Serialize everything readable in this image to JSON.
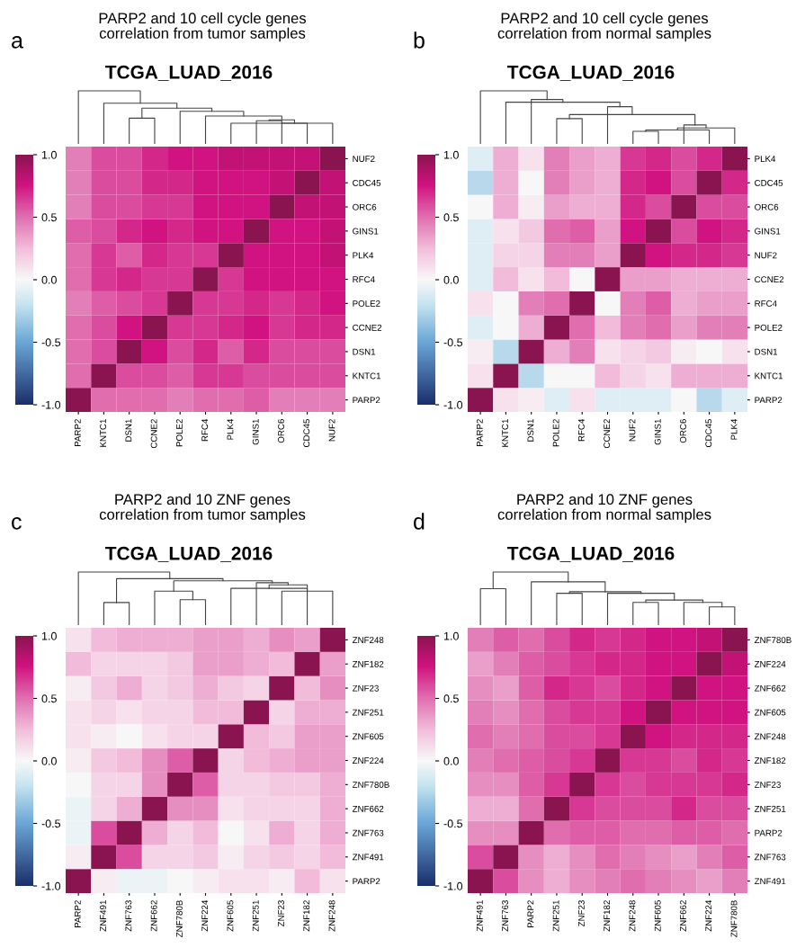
{
  "chart_data": [
    {
      "type": "heatmap",
      "title": "PARP2 and 10 cell cycle genes\ncorrelation from tumor samples",
      "subtitle": "TCGA_LUAD_2016",
      "annotations": [
        "a"
      ],
      "categories": [
        "PARP2",
        "KNTC1",
        "DSN1",
        "CCNE2",
        "POLE2",
        "RFC4",
        "PLK4",
        "GINS1",
        "ORC6",
        "CDC45",
        "NUF2"
      ],
      "y_categories": [
        "NUF2",
        "CDC45",
        "ORC6",
        "GINS1",
        "PLK4",
        "RFC4",
        "POLE2",
        "CCNE2",
        "DSN1",
        "KNTC1",
        "PARP2"
      ],
      "clim": [
        -1,
        1
      ],
      "cticks": [
        {
          "value": -1,
          "label": "-1.0"
        },
        {
          "value": -0.5,
          "label": "-0.5"
        },
        {
          "value": 0,
          "label": "0.0"
        },
        {
          "value": 0.5,
          "label": "0.5"
        },
        {
          "value": 1,
          "label": "1.0"
        }
      ],
      "cells": [
        [
          0.45,
          0.6,
          0.6,
          0.7,
          0.75,
          0.75,
          0.8,
          0.8,
          0.8,
          0.8,
          1
        ],
        [
          0.45,
          0.6,
          0.6,
          0.7,
          0.7,
          0.75,
          0.75,
          0.75,
          0.8,
          1,
          0.8
        ],
        [
          0.45,
          0.6,
          0.6,
          0.65,
          0.65,
          0.75,
          0.75,
          0.75,
          1,
          0.8,
          0.8
        ],
        [
          0.55,
          0.6,
          0.7,
          0.75,
          0.7,
          0.75,
          0.75,
          1,
          0.75,
          0.75,
          0.8
        ],
        [
          0.5,
          0.65,
          0.55,
          0.7,
          0.65,
          0.65,
          1,
          0.75,
          0.75,
          0.75,
          0.8
        ],
        [
          0.5,
          0.65,
          0.7,
          0.65,
          0.65,
          1,
          0.65,
          0.75,
          0.75,
          0.75,
          0.75
        ],
        [
          0.45,
          0.55,
          0.6,
          0.65,
          1,
          0.65,
          0.65,
          0.7,
          0.65,
          0.7,
          0.75
        ],
        [
          0.5,
          0.6,
          0.75,
          1,
          0.65,
          0.65,
          0.7,
          0.75,
          0.65,
          0.7,
          0.7
        ],
        [
          0.5,
          0.6,
          1,
          0.75,
          0.6,
          0.7,
          0.55,
          0.7,
          0.6,
          0.6,
          0.6
        ],
        [
          0.5,
          1,
          0.6,
          0.6,
          0.55,
          0.65,
          0.65,
          0.6,
          0.6,
          0.6,
          0.6
        ],
        [
          1,
          0.5,
          0.5,
          0.5,
          0.45,
          0.5,
          0.5,
          0.55,
          0.45,
          0.45,
          0.45
        ]
      ]
    },
    {
      "type": "heatmap",
      "title": "PARP2 and 10 cell cycle genes\ncorrelation from normal samples",
      "subtitle": "TCGA_LUAD_2016",
      "annotations": [
        "b"
      ],
      "categories": [
        "PARP2",
        "KNTC1",
        "DSN1",
        "POLE2",
        "RFC4",
        "CCNE2",
        "NUF2",
        "GINS1",
        "ORC6",
        "CDC45",
        "PLK4"
      ],
      "y_categories": [
        "PLK4",
        "CDC45",
        "ORC6",
        "GINS1",
        "NUF2",
        "CCNE2",
        "RFC4",
        "POLE2",
        "DSN1",
        "KNTC1",
        "PARP2"
      ],
      "clim": [
        -1,
        1
      ],
      "cticks": [
        {
          "value": -1,
          "label": "-1.0"
        },
        {
          "value": -0.5,
          "label": "-0.5"
        },
        {
          "value": 0,
          "label": "0.0"
        },
        {
          "value": 0.5,
          "label": "0.5"
        },
        {
          "value": 1,
          "label": "1.0"
        }
      ],
      "cells": [
        [
          -0.1,
          0.3,
          0.1,
          0.45,
          0.35,
          0.3,
          0.65,
          0.7,
          0.6,
          0.7,
          1
        ],
        [
          -0.25,
          0.3,
          0.0,
          0.45,
          0.35,
          0.3,
          0.7,
          0.75,
          0.6,
          1,
          0.7
        ],
        [
          0.0,
          0.3,
          0.05,
          0.35,
          0.3,
          0.3,
          0.7,
          0.6,
          1,
          0.6,
          0.6
        ],
        [
          -0.1,
          0.1,
          0.2,
          0.5,
          0.55,
          0.35,
          0.75,
          1,
          0.6,
          0.75,
          0.7
        ],
        [
          -0.1,
          0.15,
          0.15,
          0.45,
          0.45,
          0.35,
          1,
          0.75,
          0.7,
          0.7,
          0.65
        ],
        [
          -0.1,
          0.25,
          0.1,
          0.25,
          0.0,
          1,
          0.35,
          0.35,
          0.3,
          0.3,
          0.3
        ],
        [
          0.1,
          0.0,
          0.45,
          0.5,
          1,
          0.0,
          0.45,
          0.55,
          0.3,
          0.35,
          0.35
        ],
        [
          -0.1,
          0.0,
          0.3,
          1,
          0.5,
          0.25,
          0.45,
          0.5,
          0.35,
          0.45,
          0.45
        ],
        [
          0.05,
          -0.25,
          1,
          0.3,
          0.45,
          0.1,
          0.15,
          0.2,
          0.05,
          0.0,
          0.1
        ],
        [
          0.1,
          1,
          -0.25,
          0.0,
          0.0,
          0.25,
          0.15,
          0.1,
          0.3,
          0.3,
          0.3
        ],
        [
          1,
          0.1,
          0.05,
          -0.1,
          0.1,
          -0.1,
          -0.1,
          -0.1,
          0.0,
          -0.25,
          -0.1
        ]
      ]
    },
    {
      "type": "heatmap",
      "title": "PARP2 and 10 ZNF genes\ncorrelation from tumor samples",
      "subtitle": "TCGA_LUAD_2016",
      "annotations": [
        "c"
      ],
      "categories": [
        "PARP2",
        "ZNF491",
        "ZNF763",
        "ZNF662",
        "ZNF780B",
        "ZNF224",
        "ZNF605",
        "ZNF251",
        "ZNF23",
        "ZNF182",
        "ZNF248"
      ],
      "y_categories": [
        "ZNF248",
        "ZNF182",
        "ZNF23",
        "ZNF251",
        "ZNF605",
        "ZNF224",
        "ZNF780B",
        "ZNF662",
        "ZNF763",
        "ZNF491",
        "PARP2"
      ],
      "clim": [
        -1,
        1
      ],
      "cticks": [
        {
          "value": -1,
          "label": "-1.0"
        },
        {
          "value": -0.5,
          "label": "-0.5"
        },
        {
          "value": 0,
          "label": "0.0"
        },
        {
          "value": 0.5,
          "label": "0.5"
        },
        {
          "value": 1,
          "label": "1.0"
        }
      ],
      "cells": [
        [
          0.1,
          0.25,
          0.3,
          0.3,
          0.3,
          0.35,
          0.35,
          0.3,
          0.4,
          0.35,
          1
        ],
        [
          0.25,
          0.15,
          0.15,
          0.15,
          0.2,
          0.35,
          0.35,
          0.3,
          0.25,
          1,
          0.35
        ],
        [
          0.05,
          0.2,
          0.3,
          0.15,
          0.2,
          0.3,
          0.2,
          0.15,
          1,
          0.25,
          0.4
        ],
        [
          0.1,
          0.15,
          0.1,
          0.15,
          0.15,
          0.25,
          0.25,
          1,
          0.15,
          0.3,
          0.3
        ],
        [
          0.1,
          0.05,
          0.0,
          0.1,
          0.15,
          0.15,
          1,
          0.25,
          0.2,
          0.35,
          0.35
        ],
        [
          0.05,
          0.2,
          0.25,
          0.4,
          0.55,
          1,
          0.15,
          0.25,
          0.3,
          0.35,
          0.35
        ],
        [
          0.0,
          0.15,
          0.15,
          0.4,
          1,
          0.55,
          0.15,
          0.15,
          0.2,
          0.2,
          0.3
        ],
        [
          -0.05,
          0.15,
          0.3,
          1,
          0.4,
          0.4,
          0.1,
          0.15,
          0.15,
          0.15,
          0.3
        ],
        [
          -0.05,
          0.6,
          1,
          0.3,
          0.15,
          0.25,
          0.0,
          0.1,
          0.3,
          0.15,
          0.3
        ],
        [
          0.05,
          1,
          0.6,
          0.15,
          0.15,
          0.2,
          0.05,
          0.15,
          0.2,
          0.15,
          0.25
        ],
        [
          1,
          0.05,
          -0.05,
          -0.05,
          0.0,
          0.05,
          0.1,
          0.1,
          0.05,
          0.25,
          0.1
        ]
      ]
    },
    {
      "type": "heatmap",
      "title": "PARP2 and 10 ZNF genes\ncorrelation from normal samples",
      "subtitle": "TCGA_LUAD_2016",
      "annotations": [
        "d"
      ],
      "categories": [
        "ZNF491",
        "ZNF763",
        "PARP2",
        "ZNF251",
        "ZNF23",
        "ZNF182",
        "ZNF248",
        "ZNF605",
        "ZNF662",
        "ZNF224",
        "ZNF780B"
      ],
      "y_categories": [
        "ZNF780B",
        "ZNF224",
        "ZNF662",
        "ZNF605",
        "ZNF248",
        "ZNF182",
        "ZNF23",
        "ZNF251",
        "PARP2",
        "ZNF763",
        "ZNF491"
      ],
      "clim": [
        -1,
        1
      ],
      "cticks": [
        {
          "value": -1,
          "label": "-1.0"
        },
        {
          "value": -0.5,
          "label": "-0.5"
        },
        {
          "value": 0,
          "label": "0.0"
        },
        {
          "value": 0.5,
          "label": "0.5"
        },
        {
          "value": 1,
          "label": "1.0"
        }
      ],
      "cells": [
        [
          0.45,
          0.55,
          0.5,
          0.6,
          0.7,
          0.65,
          0.7,
          0.75,
          0.75,
          0.8,
          1
        ],
        [
          0.35,
          0.45,
          0.55,
          0.6,
          0.65,
          0.7,
          0.7,
          0.75,
          0.75,
          1,
          0.8
        ],
        [
          0.4,
          0.35,
          0.55,
          0.7,
          0.65,
          0.6,
          0.7,
          0.75,
          1,
          0.75,
          0.75
        ],
        [
          0.45,
          0.4,
          0.5,
          0.6,
          0.65,
          0.65,
          0.75,
          1,
          0.75,
          0.75,
          0.75
        ],
        [
          0.5,
          0.45,
          0.5,
          0.6,
          0.6,
          0.65,
          1,
          0.75,
          0.7,
          0.7,
          0.7
        ],
        [
          0.45,
          0.5,
          0.55,
          0.6,
          0.65,
          1,
          0.65,
          0.65,
          0.6,
          0.7,
          0.65
        ],
        [
          0.4,
          0.4,
          0.55,
          0.65,
          1,
          0.65,
          0.6,
          0.65,
          0.65,
          0.65,
          0.7
        ],
        [
          0.3,
          0.3,
          0.5,
          1,
          0.65,
          0.6,
          0.6,
          0.6,
          0.7,
          0.6,
          0.6
        ],
        [
          0.4,
          0.4,
          1,
          0.5,
          0.55,
          0.55,
          0.5,
          0.5,
          0.55,
          0.55,
          0.5
        ],
        [
          0.6,
          1,
          0.4,
          0.3,
          0.4,
          0.5,
          0.45,
          0.4,
          0.35,
          0.45,
          0.55
        ],
        [
          1,
          0.6,
          0.4,
          0.3,
          0.4,
          0.45,
          0.5,
          0.45,
          0.4,
          0.35,
          0.45
        ]
      ]
    }
  ]
}
